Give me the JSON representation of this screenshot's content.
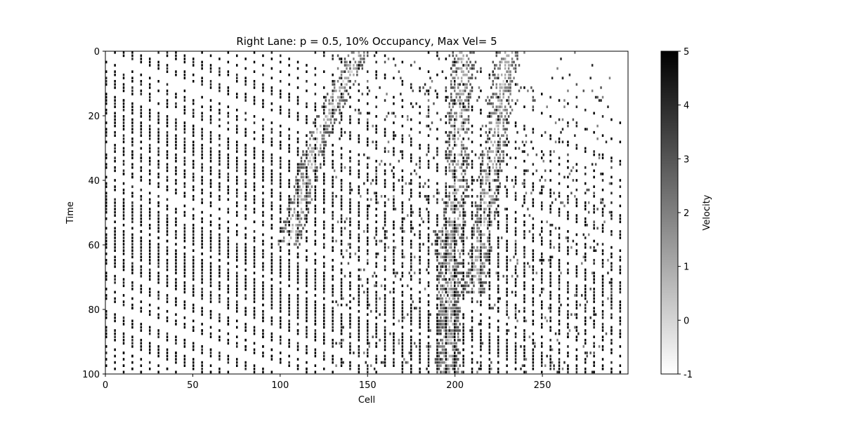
{
  "chart_data": {
    "type": "heatmap",
    "title": "Right Lane: p = 0.5, 10% Occupancy, Max Vel= 5",
    "xlabel": "Cell",
    "ylabel": "Time",
    "xlim": [
      0,
      299
    ],
    "ylim": [
      100,
      0
    ],
    "x_ticks": [
      0,
      50,
      100,
      150,
      200,
      250
    ],
    "y_ticks": [
      0,
      20,
      40,
      60,
      80,
      100
    ],
    "colorbar": {
      "label": "Velocity",
      "min": -1,
      "max": 5,
      "ticks": [
        -1,
        0,
        1,
        2,
        3,
        4,
        5
      ],
      "colormap": "Greys",
      "low_color": "#ffffff",
      "high_color": "#000000"
    },
    "grid_size": {
      "cells": 300,
      "time_steps": 101
    },
    "value_encoding": "empty cell = -1 (white); car cell = velocity 0-5 (light grey to black)",
    "free_flow_bands": [
      {
        "start_cell": 0,
        "start_time": 3
      },
      {
        "start_cell": 0,
        "start_time": 14
      },
      {
        "start_cell": 0,
        "start_time": 26
      },
      {
        "start_cell": 0,
        "start_time": 38
      },
      {
        "start_cell": 0,
        "start_time": 50
      },
      {
        "start_cell": 0,
        "start_time": 62
      },
      {
        "start_cell": 0,
        "start_time": 74
      },
      {
        "start_cell": 0,
        "start_time": 86
      },
      {
        "start_cell": 0,
        "start_time": 97
      }
    ],
    "jam_waves": [
      {
        "cell_at_t0": 145,
        "t_start": 0,
        "t_end": 25,
        "drift": -0.9
      },
      {
        "cell_at_t0": 205,
        "t_start": 0,
        "t_end": 100,
        "drift": -0.1
      },
      {
        "cell_at_t0": 230,
        "t_start": 0,
        "t_end": 75,
        "drift": -0.25
      },
      {
        "cell_at_t0": 122,
        "t_start": 25,
        "t_end": 60,
        "drift": -0.5
      },
      {
        "cell_at_t0": 195,
        "t_start": 55,
        "t_end": 100,
        "drift": 0.05
      }
    ]
  }
}
